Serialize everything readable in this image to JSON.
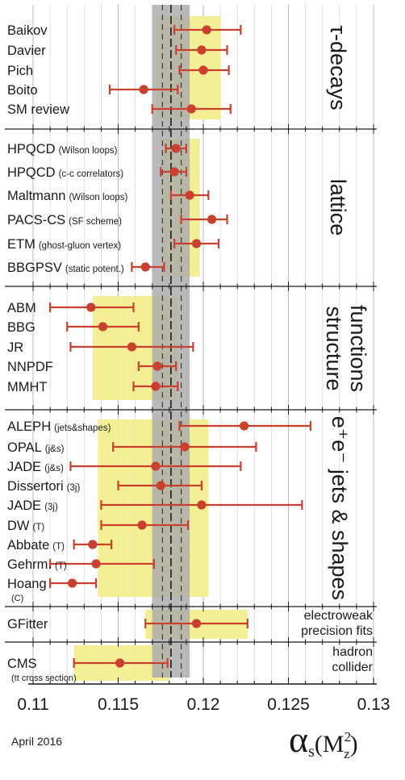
{
  "footer_date": "April 2016",
  "colors": {
    "band_gray": "#a9a9ab",
    "band_gray_dark": "#8e8e90",
    "yellow": "#f3ee8c",
    "marker": "#c9402f",
    "line": "#1a1a1a"
  },
  "chart_data": {
    "type": "scatter",
    "title": "",
    "xlabel": "αs(M²z)",
    "xlabel_base": "α",
    "xlabel_sub": "s",
    "xlabel_open": "(M",
    "xlabel_sup": "2",
    "xlabel_sub2": "z",
    "xlabel_close": ")",
    "xlim": [
      0.11,
      0.13
    ],
    "xticks": [
      "0.11",
      "0.115",
      "0.12",
      "0.125",
      "0.13"
    ],
    "world_average": {
      "value": 0.1181,
      "band": [
        0.117,
        0.1192
      ],
      "inner": [
        0.1176,
        0.1187
      ]
    },
    "groups": [
      {
        "name": "τ-decays",
        "label_lines": [
          "τ-decays"
        ],
        "band": [
          0.1172,
          0.121
        ],
        "points": [
          {
            "label": "Baikov",
            "note": "",
            "value": 0.1202,
            "lo": 0.1183,
            "hi": 0.1222
          },
          {
            "label": "Davier",
            "note": "",
            "value": 0.1199,
            "lo": 0.1184,
            "hi": 0.1214
          },
          {
            "label": "Pich",
            "note": "",
            "value": 0.12,
            "lo": 0.1186,
            "hi": 0.1215
          },
          {
            "label": "Boito",
            "note": "",
            "value": 0.1165,
            "lo": 0.1145,
            "hi": 0.1185
          },
          {
            "label": "SM review",
            "note": "",
            "value": 0.1193,
            "lo": 0.117,
            "hi": 0.1216
          }
        ]
      },
      {
        "name": "lattice",
        "label_lines": [
          "lattice"
        ],
        "band": [
          0.1176,
          0.1198
        ],
        "points": [
          {
            "label": "HPQCD",
            "note": "(Wilson loops)",
            "value": 0.1184,
            "lo": 0.1178,
            "hi": 0.119
          },
          {
            "label": "HPQCD",
            "note": "(c-c correlators)",
            "value": 0.1183,
            "lo": 0.1175,
            "hi": 0.119
          },
          {
            "label": "Maltmann",
            "note": "(Wilson loops)",
            "value": 0.1192,
            "lo": 0.1181,
            "hi": 0.1203
          },
          {
            "label": "PACS-CS",
            "note": "(SF scheme)",
            "value": 0.1205,
            "lo": 0.1187,
            "hi": 0.1214
          },
          {
            "label": "ETM",
            "note": "(ghost-gluon vertex)",
            "value": 0.1196,
            "lo": 0.1183,
            "hi": 0.1209
          },
          {
            "label": "BBGPSV",
            "note": "(static potent.)",
            "value": 0.1166,
            "lo": 0.1158,
            "hi": 0.1177
          }
        ]
      },
      {
        "name": "structure functions",
        "label_lines": [
          "structure",
          "functions"
        ],
        "band": [
          0.1135,
          0.1185
        ],
        "points": [
          {
            "label": "ABM",
            "note": "",
            "value": 0.1134,
            "lo": 0.111,
            "hi": 0.1159
          },
          {
            "label": "BBG",
            "note": "",
            "value": 0.1141,
            "lo": 0.112,
            "hi": 0.1162
          },
          {
            "label": "JR",
            "note": "",
            "value": 0.1158,
            "lo": 0.1122,
            "hi": 0.1194
          },
          {
            "label": "NNPDF",
            "note": "",
            "value": 0.1173,
            "lo": 0.1162,
            "hi": 0.1184
          },
          {
            "label": "MMHT",
            "note": "",
            "value": 0.1172,
            "lo": 0.1159,
            "hi": 0.1185
          }
        ]
      },
      {
        "name": "e+e- jets & shapes",
        "label_lines": [
          "e⁺e⁻ jets & shapes"
        ],
        "band": [
          0.1138,
          0.1203
        ],
        "points": [
          {
            "label": "ALEPH",
            "note": "(jets&shapes)",
            "value": 0.1224,
            "lo": 0.1186,
            "hi": 0.1263
          },
          {
            "label": "OPAL",
            "note": "(j&s)",
            "value": 0.1189,
            "lo": 0.1147,
            "hi": 0.1231
          },
          {
            "label": "JADE",
            "note": "(j&s)",
            "value": 0.1172,
            "lo": 0.1122,
            "hi": 0.1222
          },
          {
            "label": "Dissertori",
            "note": "(3j)",
            "value": 0.1175,
            "lo": 0.115,
            "hi": 0.1199
          },
          {
            "label": "JADE",
            "note": "(3j)",
            "value": 0.1199,
            "lo": 0.114,
            "hi": 0.1258
          },
          {
            "label": "DW",
            "note": "(T)",
            "value": 0.1164,
            "lo": 0.114,
            "hi": 0.1191
          },
          {
            "label": "Abbate",
            "note": "(T)",
            "value": 0.1135,
            "lo": 0.1124,
            "hi": 0.1146
          },
          {
            "label": "Gehrm.",
            "note": "(T)",
            "value": 0.1137,
            "lo": 0.111,
            "hi": 0.1171
          },
          {
            "label": "Hoang",
            "note": "(C)",
            "value": 0.1123,
            "lo": 0.111,
            "hi": 0.1137
          }
        ]
      },
      {
        "name": "electroweak precision fits",
        "label_lines": [
          "electroweak",
          "precision fits"
        ],
        "band": [
          0.1166,
          0.1226
        ],
        "points": [
          {
            "label": "GFitter",
            "note": "",
            "value": 0.1196,
            "lo": 0.1166,
            "hi": 0.1226
          }
        ]
      },
      {
        "name": "hadron collider",
        "label_lines": [
          "hadron",
          "collider"
        ],
        "band": [
          0.1124,
          0.118
        ],
        "points": [
          {
            "label": "CMS",
            "note": "(tt cross section)",
            "value": 0.1151,
            "lo": 0.1124,
            "hi": 0.1179
          }
        ]
      }
    ]
  }
}
